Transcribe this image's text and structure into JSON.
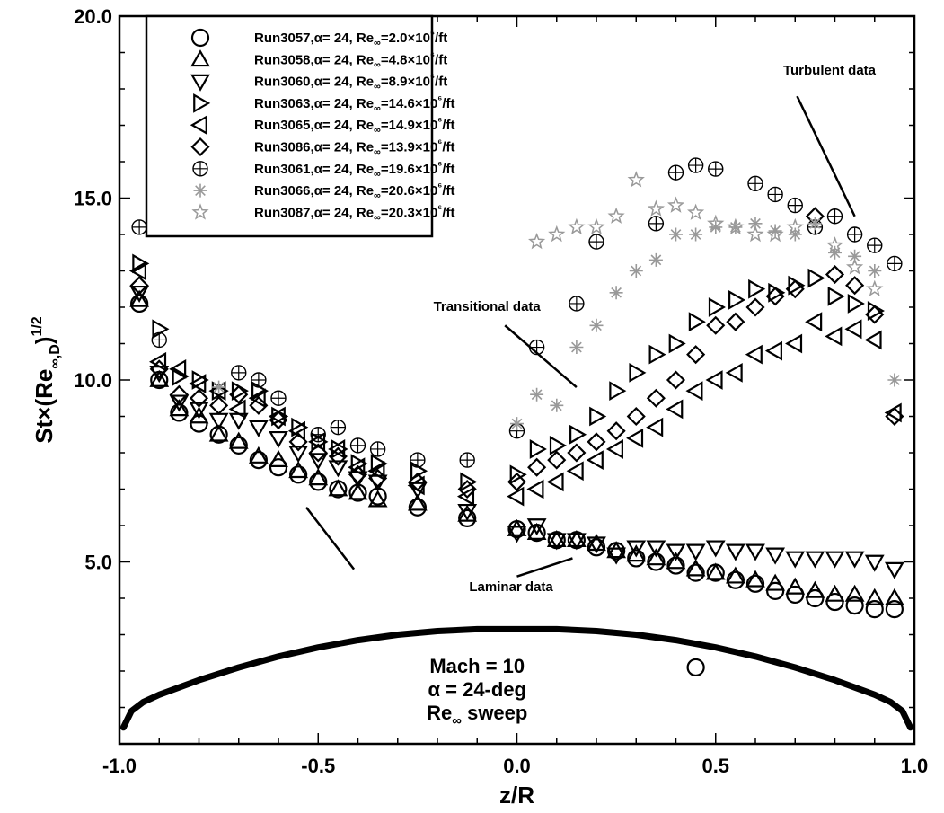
{
  "chart_data": {
    "type": "scatter",
    "xlabel": "z/R",
    "ylabel": "St×(Re∞,D)1/2",
    "xlim": [
      -1.0,
      1.0
    ],
    "ylim": [
      0.0,
      20.0
    ],
    "xticks": [
      -1.0,
      -0.5,
      0.0,
      0.5,
      1.0
    ],
    "yticks": [
      5.0,
      10.0,
      15.0,
      20.0
    ],
    "xtick_labels": [
      "-1.0",
      "-0.5",
      "0.0",
      "0.5",
      "1.0"
    ],
    "ytick_labels": [
      "5.0",
      "10.0",
      "15.0",
      "20.0"
    ],
    "grid": false,
    "legend_position": "top-left",
    "series": [
      {
        "name": "Run3057,α= 24, Re∞=2.0×10⁶/ft",
        "marker": "circle",
        "color": "#000000",
        "x": [
          -0.95,
          -0.9,
          -0.85,
          -0.8,
          -0.75,
          -0.7,
          -0.65,
          -0.6,
          -0.55,
          -0.5,
          -0.45,
          -0.4,
          -0.35,
          -0.25,
          -0.125,
          0.0,
          0.05,
          0.1,
          0.15,
          0.2,
          0.25,
          0.3,
          0.35,
          0.4,
          0.45,
          0.5,
          0.55,
          0.6,
          0.65,
          0.7,
          0.75,
          0.8,
          0.85,
          0.9,
          0.95,
          0.45
        ],
        "y": [
          12.1,
          10.0,
          9.1,
          8.8,
          8.5,
          8.2,
          7.8,
          7.6,
          7.4,
          7.2,
          7.0,
          6.9,
          6.8,
          6.5,
          6.2,
          5.9,
          5.8,
          5.6,
          5.6,
          5.4,
          5.3,
          5.1,
          5.0,
          4.9,
          4.7,
          4.7,
          4.5,
          4.4,
          4.2,
          4.1,
          4.0,
          3.9,
          3.8,
          3.7,
          3.7,
          2.1
        ]
      },
      {
        "name": "Run3058,α= 24, Re∞=4.8×10⁶/ft",
        "marker": "triangle-up",
        "color": "#000000",
        "x": [
          -0.95,
          -0.9,
          -0.85,
          -0.8,
          -0.75,
          -0.7,
          -0.65,
          -0.6,
          -0.55,
          -0.5,
          -0.45,
          -0.4,
          -0.35,
          -0.25,
          -0.125,
          0.0,
          0.05,
          0.1,
          0.15,
          0.2,
          0.25,
          0.3,
          0.35,
          0.4,
          0.45,
          0.5,
          0.55,
          0.6,
          0.65,
          0.7,
          0.75,
          0.8,
          0.85,
          0.9,
          0.95
        ],
        "y": [
          12.2,
          10.0,
          9.2,
          9.0,
          8.5,
          8.3,
          7.9,
          7.8,
          7.5,
          7.3,
          7.0,
          6.9,
          6.7,
          6.6,
          6.3,
          5.9,
          5.8,
          5.6,
          5.6,
          5.5,
          5.3,
          5.2,
          5.1,
          5.0,
          4.8,
          4.7,
          4.6,
          4.5,
          4.4,
          4.3,
          4.2,
          4.1,
          4.1,
          4.0,
          4.0
        ]
      },
      {
        "name": "Run3060,α= 24, Re∞=8.9×10⁶/ft",
        "marker": "triangle-down",
        "color": "#000000",
        "x": [
          -0.95,
          -0.9,
          -0.85,
          -0.8,
          -0.75,
          -0.7,
          -0.65,
          -0.6,
          -0.55,
          -0.5,
          -0.45,
          -0.4,
          -0.35,
          -0.25,
          -0.125,
          0.0,
          0.05,
          0.1,
          0.15,
          0.2,
          0.25,
          0.3,
          0.35,
          0.4,
          0.45,
          0.5,
          0.55,
          0.6,
          0.65,
          0.7,
          0.75,
          0.8,
          0.85,
          0.9,
          0.95
        ],
        "y": [
          12.4,
          10.2,
          9.4,
          9.2,
          8.9,
          8.9,
          8.7,
          8.4,
          8.0,
          7.8,
          7.6,
          7.3,
          7.2,
          7.0,
          6.4,
          5.8,
          6.0,
          5.6,
          5.6,
          5.5,
          5.2,
          5.4,
          5.4,
          5.3,
          5.3,
          5.4,
          5.3,
          5.3,
          5.2,
          5.1,
          5.1,
          5.1,
          5.1,
          5.0,
          4.8
        ]
      },
      {
        "name": "Run3063,α= 24, Re∞=14.6×10⁶/ft",
        "marker": "triangle-right",
        "color": "#000000",
        "x": [
          -0.95,
          -0.9,
          -0.85,
          -0.8,
          -0.75,
          -0.7,
          -0.65,
          -0.6,
          -0.55,
          -0.5,
          -0.45,
          -0.4,
          -0.35,
          -0.25,
          -0.125,
          0.0,
          0.05,
          0.1,
          0.15,
          0.2,
          0.25,
          0.3,
          0.35,
          0.4,
          0.45,
          0.5,
          0.55,
          0.6,
          0.65,
          0.7,
          0.75,
          0.8,
          0.85,
          0.9
        ],
        "y": [
          13.2,
          11.4,
          10.1,
          10.0,
          9.7,
          9.7,
          9.7,
          9.0,
          8.7,
          8.3,
          8.1,
          7.7,
          7.7,
          7.5,
          7.2,
          7.4,
          8.1,
          8.2,
          8.5,
          9.0,
          9.7,
          10.2,
          10.7,
          11.0,
          11.6,
          12.0,
          12.2,
          12.5,
          12.4,
          12.6,
          12.8,
          12.3,
          12.1,
          11.9
        ]
      },
      {
        "name": "Run3065,α= 24, Re∞=14.9×10⁶/ft",
        "marker": "triangle-left",
        "color": "#000000",
        "x": [
          -0.95,
          -0.9,
          -0.85,
          -0.8,
          -0.75,
          -0.7,
          -0.65,
          -0.6,
          -0.55,
          -0.5,
          -0.45,
          -0.4,
          -0.35,
          -0.25,
          -0.125,
          0.0,
          0.05,
          0.1,
          0.15,
          0.2,
          0.25,
          0.3,
          0.35,
          0.4,
          0.45,
          0.5,
          0.55,
          0.6,
          0.65,
          0.7,
          0.75,
          0.8,
          0.85,
          0.9,
          0.95
        ],
        "y": [
          13.0,
          10.5,
          10.3,
          9.9,
          9.7,
          9.2,
          9.5,
          9.0,
          8.6,
          8.3,
          8.1,
          7.6,
          7.5,
          7.1,
          6.8,
          6.8,
          7.0,
          7.2,
          7.5,
          7.8,
          8.1,
          8.4,
          8.7,
          9.2,
          9.7,
          10.0,
          10.2,
          10.7,
          10.8,
          11.0,
          11.6,
          11.2,
          11.4,
          11.1,
          9.1
        ]
      },
      {
        "name": "Run3086,α= 24, Re∞=13.9×10⁶/ft",
        "marker": "diamond",
        "color": "#000000",
        "x": [
          -0.95,
          -0.9,
          -0.85,
          -0.8,
          -0.75,
          -0.7,
          -0.65,
          -0.6,
          -0.55,
          -0.5,
          -0.45,
          -0.4,
          -0.35,
          -0.25,
          -0.125,
          0.0,
          0.05,
          0.1,
          0.15,
          0.2,
          0.25,
          0.3,
          0.35,
          0.4,
          0.45,
          0.5,
          0.55,
          0.6,
          0.65,
          0.7,
          0.75,
          0.8,
          0.85,
          0.9,
          0.95
        ],
        "y": [
          12.6,
          10.3,
          9.6,
          9.5,
          9.3,
          9.6,
          9.3,
          8.9,
          8.3,
          8.0,
          7.9,
          7.4,
          7.3,
          7.2,
          7.0,
          7.2,
          7.6,
          7.8,
          8.0,
          8.3,
          8.6,
          9.0,
          9.5,
          10.0,
          10.7,
          11.5,
          11.6,
          12.0,
          12.3,
          12.5,
          14.5,
          12.9,
          12.6,
          11.8,
          9.0
        ]
      },
      {
        "name": "Run3061,α= 24, Re∞=19.6×10⁶/ft",
        "marker": "circle-plus",
        "color": "#000000",
        "x": [
          -0.95,
          -0.9,
          -0.7,
          -0.65,
          -0.6,
          -0.5,
          -0.45,
          -0.4,
          -0.35,
          -0.25,
          -0.125,
          0.0,
          0.05,
          0.15,
          0.2,
          0.35,
          0.4,
          0.45,
          0.5,
          0.6,
          0.65,
          0.7,
          0.75,
          0.8,
          0.85,
          0.9,
          0.95
        ],
        "y": [
          14.2,
          11.1,
          10.2,
          10.0,
          9.5,
          8.5,
          8.7,
          8.2,
          8.1,
          7.8,
          7.8,
          8.6,
          10.9,
          12.1,
          13.8,
          14.3,
          15.7,
          15.9,
          15.8,
          15.4,
          15.1,
          14.8,
          14.2,
          14.5,
          14.0,
          13.7,
          13.2
        ]
      },
      {
        "name": "Run3066,α= 24, Re∞=20.6×10⁶/ft",
        "marker": "asterisk",
        "color": "#999999",
        "x": [
          -0.75,
          0.0,
          0.05,
          0.1,
          0.15,
          0.2,
          0.25,
          0.3,
          0.35,
          0.4,
          0.45,
          0.5,
          0.55,
          0.6,
          0.65,
          0.7,
          0.75,
          0.8,
          0.85,
          0.9,
          0.95
        ],
        "y": [
          9.8,
          8.8,
          9.6,
          9.3,
          10.9,
          11.5,
          12.4,
          13.0,
          13.3,
          14.0,
          14.0,
          14.2,
          14.2,
          14.3,
          14.1,
          14.0,
          14.3,
          13.5,
          13.4,
          13.0,
          10.0
        ]
      },
      {
        "name": "Run3087,α= 24, Re∞=20.3×10⁶/ft",
        "marker": "star",
        "color": "#999999",
        "x": [
          0.05,
          0.1,
          0.15,
          0.2,
          0.25,
          0.3,
          0.35,
          0.4,
          0.45,
          0.5,
          0.55,
          0.6,
          0.65,
          0.7,
          0.8,
          0.85,
          0.9
        ],
        "y": [
          13.8,
          14.0,
          14.2,
          14.2,
          14.5,
          15.5,
          14.7,
          14.8,
          14.6,
          14.3,
          14.2,
          14.0,
          14.0,
          14.2,
          13.7,
          13.1,
          12.5
        ]
      }
    ],
    "body_profile": {
      "x": [
        -0.99,
        -0.97,
        -0.94,
        -0.9,
        -0.85,
        -0.8,
        -0.7,
        -0.6,
        -0.5,
        -0.4,
        -0.3,
        -0.2,
        -0.1,
        0.0,
        0.1,
        0.2,
        0.3,
        0.4,
        0.5,
        0.6,
        0.7,
        0.8,
        0.85,
        0.9,
        0.94,
        0.97,
        0.99
      ],
      "y": [
        0.45,
        0.9,
        1.15,
        1.35,
        1.55,
        1.75,
        2.1,
        2.4,
        2.65,
        2.85,
        3.0,
        3.1,
        3.15,
        3.15,
        3.15,
        3.1,
        3.0,
        2.85,
        2.65,
        2.4,
        2.1,
        1.75,
        1.55,
        1.35,
        1.15,
        0.9,
        0.45
      ]
    },
    "annotations": [
      {
        "text": "Turbulent data",
        "x": 0.67,
        "y": 18.4,
        "line": [
          [
            0.705,
            17.8
          ],
          [
            0.85,
            14.5
          ]
        ]
      },
      {
        "text": "Transitional data",
        "x": -0.21,
        "y": 11.9,
        "line": [
          [
            -0.03,
            11.5
          ],
          [
            0.15,
            9.8
          ]
        ]
      },
      {
        "text": "Laminar data",
        "x": -0.12,
        "y": 4.2,
        "lines": [
          [
            [
              -0.41,
              4.8
            ],
            [
              -0.53,
              6.5
            ]
          ],
          [
            [
              0.0,
              4.6
            ],
            [
              0.14,
              5.1
            ]
          ]
        ]
      }
    ],
    "conditions": [
      "Mach = 10",
      "α = 24-deg",
      "Re∞ sweep"
    ]
  }
}
